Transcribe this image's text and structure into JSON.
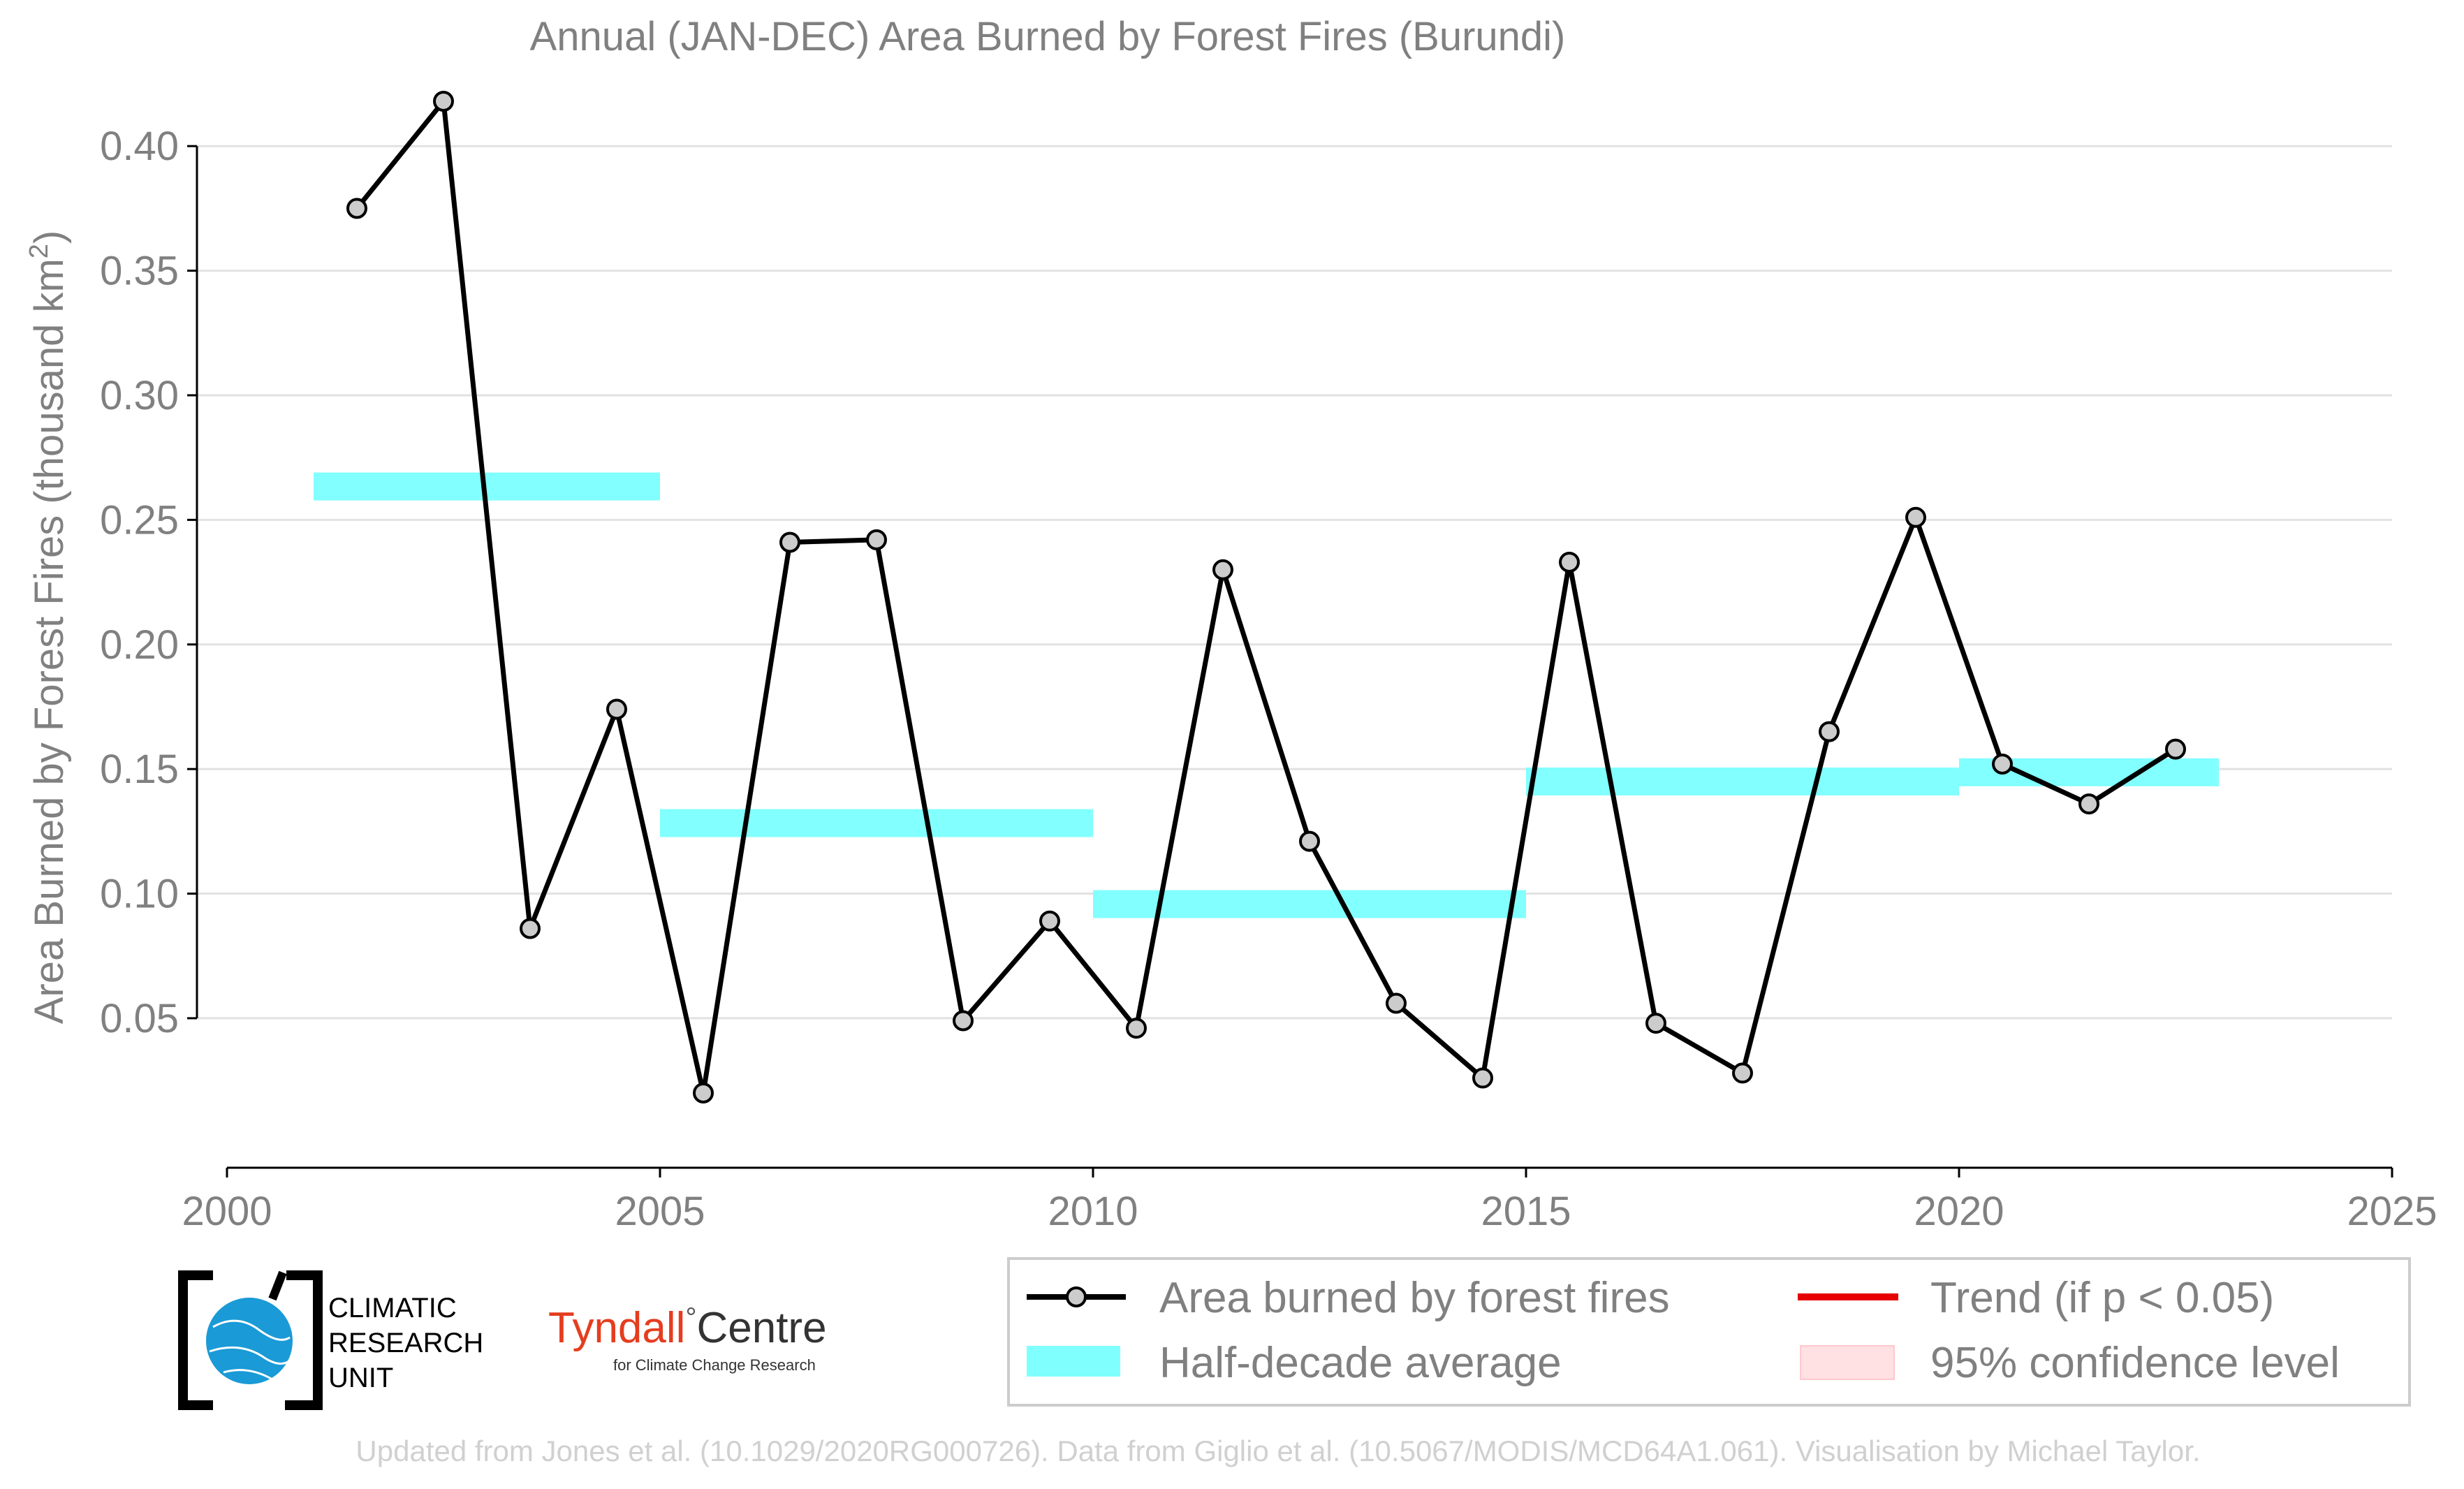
{
  "chart_data": {
    "type": "line",
    "title": "Annual (JAN-DEC) Area Burned by Forest Fires (Burundi)",
    "ylabel_main": "Area Burned by Forest Fires (thousand km",
    "ylabel_sup": "2",
    "ylabel_close": ")",
    "xlim": [
      2000,
      2025
    ],
    "ylim": [
      -0.01,
      0.425
    ],
    "x_ticks": [
      2000,
      2005,
      2010,
      2015,
      2020,
      2025
    ],
    "x_tick_labels": [
      "2000",
      "2005",
      "2010",
      "2015",
      "2020",
      "2025"
    ],
    "y_ticks": [
      0.05,
      0.1,
      0.15,
      0.2,
      0.25,
      0.3,
      0.35,
      0.4
    ],
    "y_tick_labels": [
      "0.05",
      "0.10",
      "0.15",
      "0.20",
      "0.25",
      "0.30",
      "0.35",
      "0.40"
    ],
    "grid": "horizontal",
    "series": [
      {
        "name": "Area burned by forest fires",
        "color": "#000000",
        "marker_fill": "#cccccc",
        "x": [
          2001.5,
          2002.5,
          2003.5,
          2004.5,
          2005.5,
          2006.5,
          2007.5,
          2008.5,
          2009.5,
          2010.5,
          2011.5,
          2012.5,
          2013.5,
          2014.5,
          2015.5,
          2016.5,
          2017.5,
          2018.5,
          2019.5,
          2020.5,
          2021.5,
          2022.5
        ],
        "y": [
          0.375,
          0.418,
          0.086,
          0.174,
          0.02,
          0.241,
          0.242,
          0.049,
          0.089,
          0.046,
          0.23,
          0.121,
          0.056,
          0.026,
          0.233,
          0.048,
          0.028,
          0.165,
          0.251,
          0.152,
          0.136,
          0.158
        ]
      }
    ],
    "half_decade_average": {
      "name": "Half-decade average",
      "color": "#80ffff",
      "segments": [
        {
          "x_start": 2001,
          "x_end": 2005,
          "value": 0.2634
        },
        {
          "x_start": 2005,
          "x_end": 2010,
          "value": 0.1283
        },
        {
          "x_start": 2010,
          "x_end": 2015,
          "value": 0.0958
        },
        {
          "x_start": 2015,
          "x_end": 2020,
          "value": 0.145
        },
        {
          "x_start": 2020,
          "x_end": 2023,
          "value": 0.1487
        }
      ]
    },
    "legend": {
      "placement": "bottom-right",
      "entries": [
        {
          "label": "Area burned by forest fires",
          "kind": "line-marker",
          "color": "#000000"
        },
        {
          "label": "Trend (if p < 0.05)",
          "kind": "line",
          "color": "#e60000"
        },
        {
          "label": "Half-decade average",
          "kind": "band",
          "color": "#80ffff"
        },
        {
          "label": "95% confidence level",
          "kind": "band",
          "color": "#ffe0e3"
        }
      ]
    }
  },
  "logos": {
    "cru_line1": "CLIMATIC",
    "cru_line2": "RESEARCH",
    "cru_line3": "UNIT",
    "tyndall_main": "Tyndall",
    "tyndall_degree": "°",
    "tyndall_centre": "Centre",
    "tyndall_sub": "for Climate Change Research"
  },
  "footer": "Updated from Jones et al. (10.1029/2020RG000726). Data from Giglio et al. (10.5067/MODIS/MCD64A1.061). Visualisation by Michael Taylor."
}
